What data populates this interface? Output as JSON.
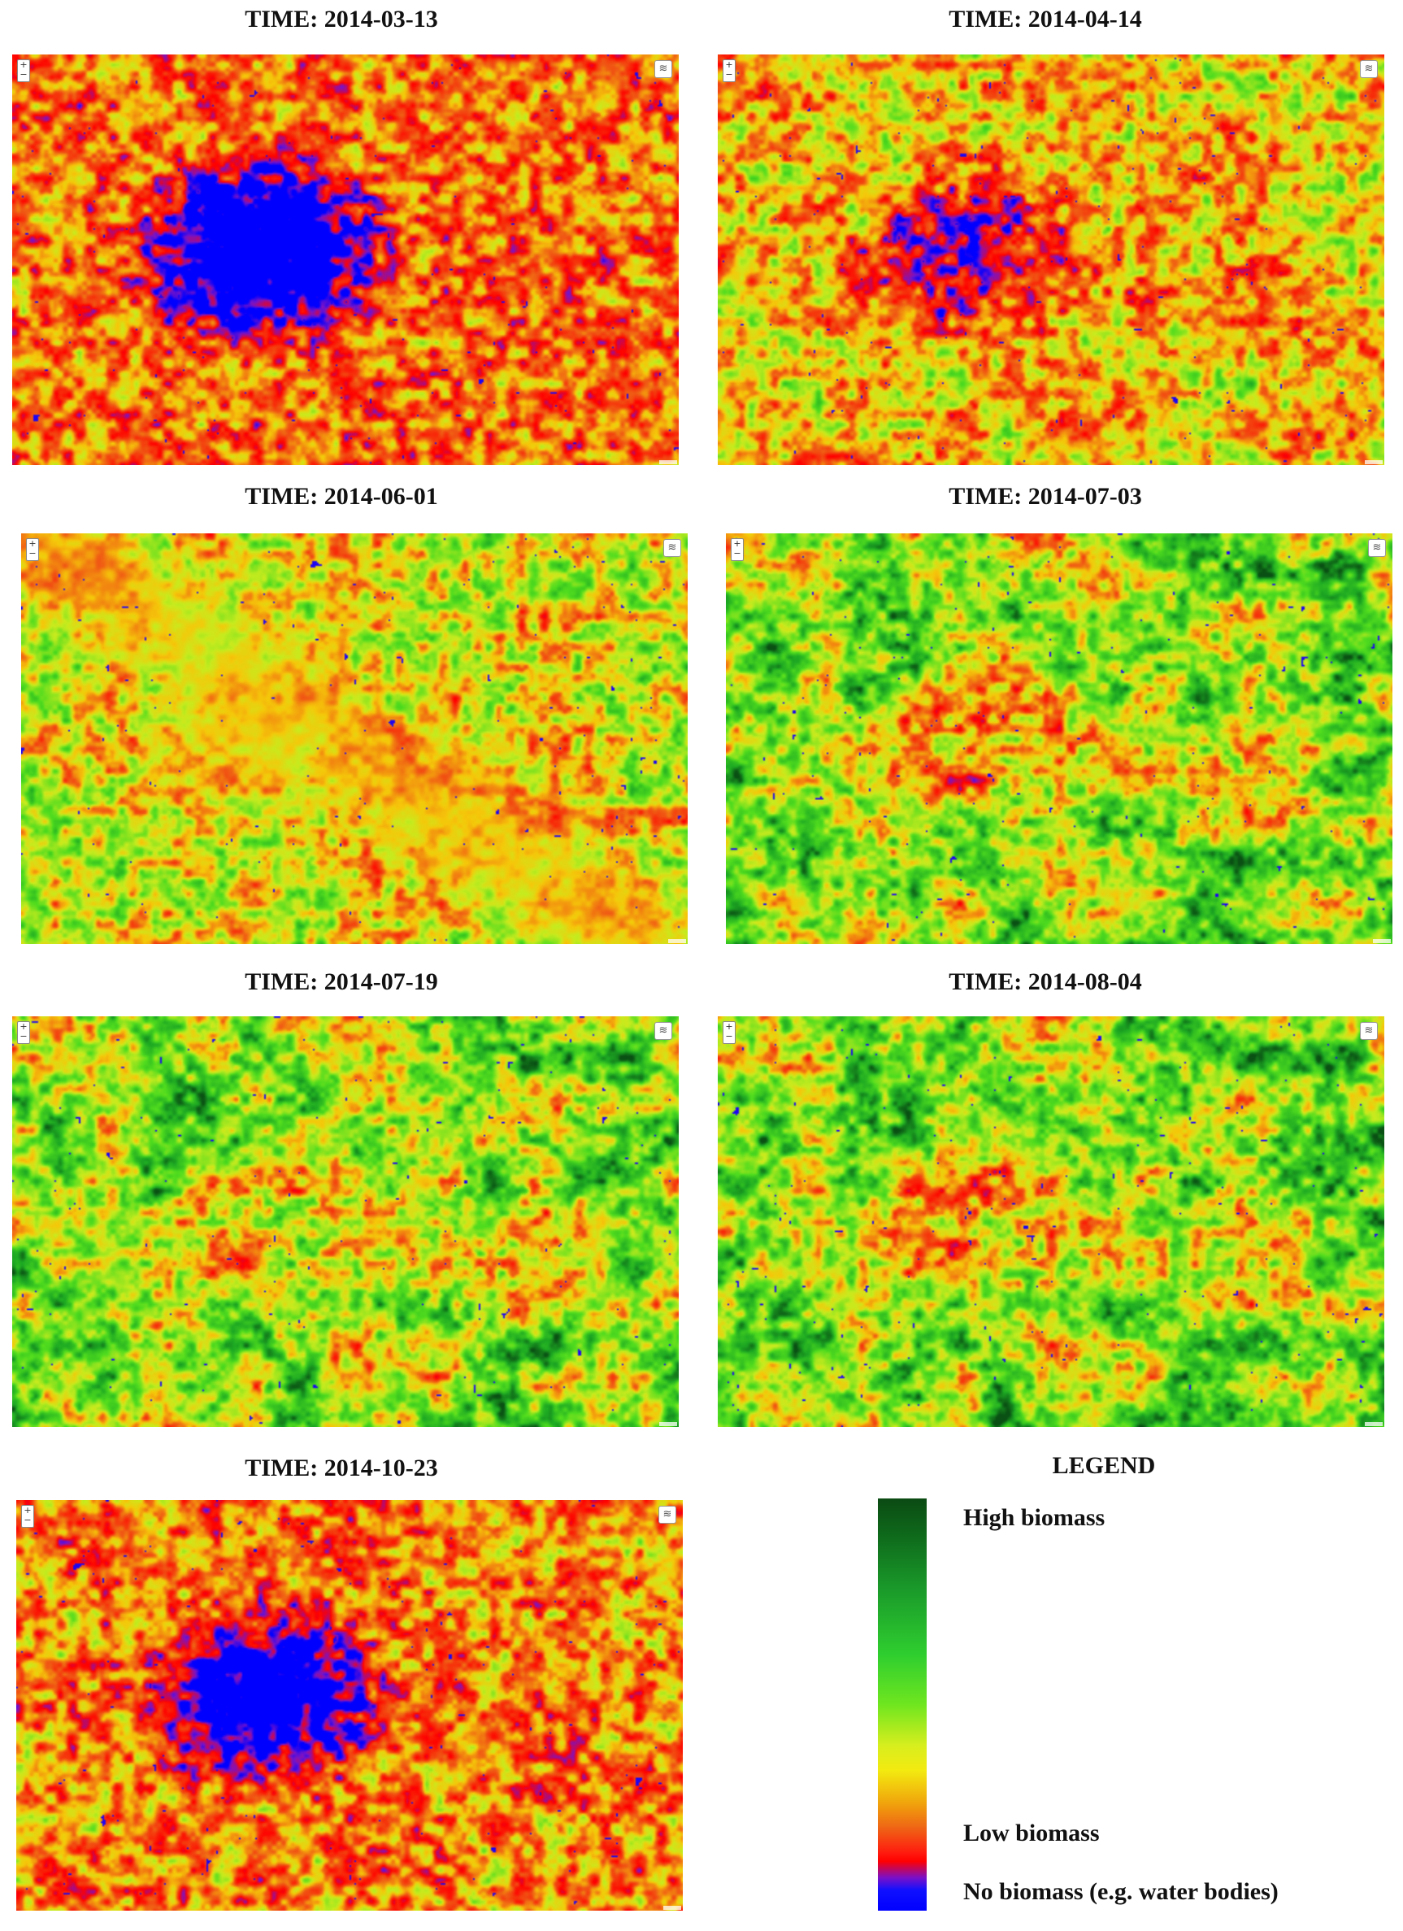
{
  "panels": [
    {
      "title": "TIME: 2014-03-13",
      "profile": {
        "urban": 1.0,
        "red": 0.55,
        "green": 0.1,
        "haze": 0.0
      }
    },
    {
      "title": "TIME: 2014-04-14",
      "profile": {
        "urban": 0.6,
        "red": 0.45,
        "green": 0.3,
        "haze": 0.0
      }
    },
    {
      "title": "TIME: 2014-06-01",
      "profile": {
        "urban": 0.0,
        "red": 0.3,
        "green": 0.35,
        "haze": 0.85
      }
    },
    {
      "title": "TIME: 2014-07-03",
      "profile": {
        "urban": 0.45,
        "red": 0.25,
        "green": 0.6,
        "haze": 0.0
      }
    },
    {
      "title": "TIME: 2014-07-19",
      "profile": {
        "urban": 0.25,
        "red": 0.3,
        "green": 0.6,
        "haze": 0.0
      }
    },
    {
      "title": "TIME: 2014-08-04",
      "profile": {
        "urban": 0.45,
        "red": 0.25,
        "green": 0.62,
        "haze": 0.0
      }
    },
    {
      "title": "TIME: 2014-10-23",
      "profile": {
        "urban": 0.9,
        "red": 0.55,
        "green": 0.18,
        "haze": 0.0
      }
    }
  ],
  "map_controls": {
    "zoom_in": "+",
    "zoom_out": "−",
    "layers_icon": "layers-icon"
  },
  "legend": {
    "title": "LEGEND",
    "high": "High biomass",
    "low": "Low biomass",
    "none": "No biomass (e.g. water bodies)",
    "colors": {
      "high": "#0b4a13",
      "mid": "#2fce2f",
      "yellow": "#f3ea10",
      "low": "#ff0000",
      "none": "#0000ff"
    }
  }
}
